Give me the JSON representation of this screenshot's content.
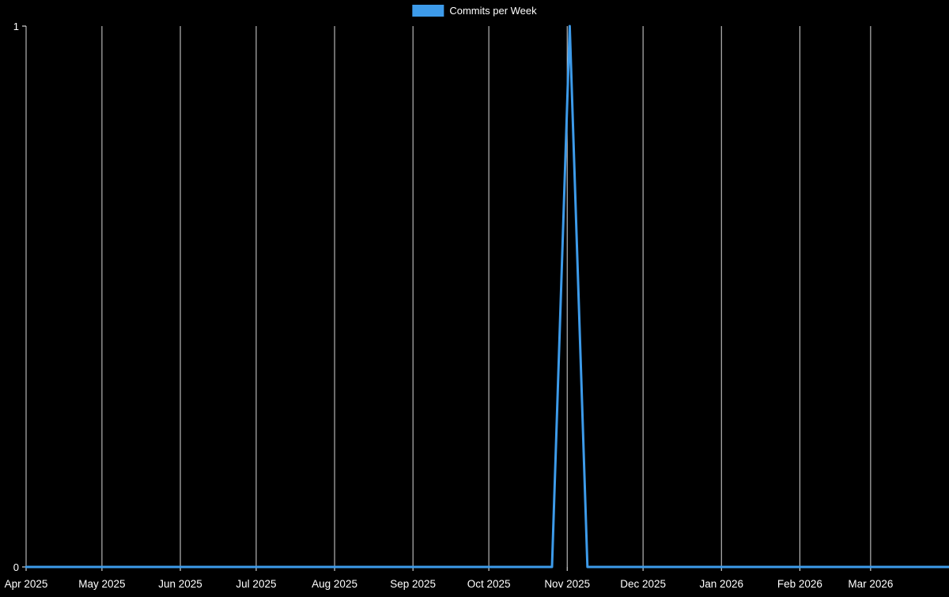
{
  "chart_data": {
    "type": "line",
    "title": "",
    "legend_position": "top-center",
    "grid": true,
    "background_color": "#000000",
    "text_color": "#ffffff",
    "grid_color": "#ffffff",
    "axis_color": "#ffffff",
    "x_axis": {
      "type": "date",
      "range": [
        "2025-04-01",
        "2026-04-01"
      ],
      "tick_labels": [
        "Apr 2025",
        "May 2025",
        "Jun 2025",
        "Jul 2025",
        "Aug 2025",
        "Sep 2025",
        "Oct 2025",
        "Nov 2025",
        "Dec 2025",
        "Jan 2026",
        "Feb 2026",
        "Mar 2026"
      ],
      "tick_dates": [
        "2025-04-01",
        "2025-05-01",
        "2025-06-01",
        "2025-07-01",
        "2025-08-01",
        "2025-09-01",
        "2025-10-01",
        "2025-11-01",
        "2025-12-01",
        "2026-01-01",
        "2026-02-01",
        "2026-03-01"
      ]
    },
    "y_axis": {
      "range": [
        0,
        1
      ],
      "ticks": [
        0,
        1
      ]
    },
    "series": [
      {
        "name": "Commits per Week",
        "color": "#3d9bea",
        "x": [
          "2025-04-06",
          "2025-04-13",
          "2025-04-20",
          "2025-04-27",
          "2025-05-04",
          "2025-05-11",
          "2025-05-18",
          "2025-05-25",
          "2025-06-01",
          "2025-06-08",
          "2025-06-15",
          "2025-06-22",
          "2025-06-29",
          "2025-07-06",
          "2025-07-13",
          "2025-07-20",
          "2025-07-27",
          "2025-08-03",
          "2025-08-10",
          "2025-08-17",
          "2025-08-24",
          "2025-08-31",
          "2025-09-07",
          "2025-09-14",
          "2025-09-21",
          "2025-09-28",
          "2025-10-05",
          "2025-10-12",
          "2025-10-19",
          "2025-10-26",
          "2025-11-02",
          "2025-11-09",
          "2025-11-16",
          "2025-11-23",
          "2025-11-30",
          "2025-12-07",
          "2025-12-14",
          "2025-12-21",
          "2025-12-28",
          "2026-01-04",
          "2026-01-11",
          "2026-01-18",
          "2026-01-25",
          "2026-02-01",
          "2026-02-08",
          "2026-02-15",
          "2026-02-22",
          "2026-03-01",
          "2026-03-08",
          "2026-03-15",
          "2026-03-22",
          "2026-03-29"
        ],
        "y": [
          0,
          0,
          0,
          0,
          0,
          0,
          0,
          0,
          0,
          0,
          0,
          0,
          0,
          0,
          0,
          0,
          0,
          0,
          0,
          0,
          0,
          0,
          0,
          0,
          0,
          0,
          0,
          0,
          0,
          0,
          1,
          0,
          0,
          0,
          0,
          0,
          0,
          0,
          0,
          0,
          0,
          0,
          0,
          0,
          0,
          0,
          0,
          0,
          0,
          0,
          0,
          0
        ]
      }
    ]
  }
}
